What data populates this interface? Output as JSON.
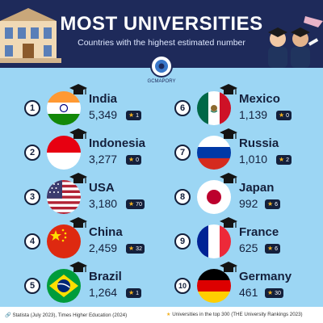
{
  "header": {
    "title": "MOST UNIVERSITIES",
    "subtitle": "Countries with the highest estimated number",
    "logo_text": "GCMAPORY"
  },
  "colors": {
    "header_bg": "#1e2a5a",
    "background": "#9cd6f4",
    "badge_bg": "#14203c",
    "star": "#f2b01e"
  },
  "countries": [
    {
      "rank": "1",
      "name": "India",
      "count": "5,349",
      "badge": "1",
      "flag_icon": "india-flag-icon"
    },
    {
      "rank": "2",
      "name": "Indonesia",
      "count": "3,277",
      "badge": "0",
      "flag_icon": "indonesia-flag-icon"
    },
    {
      "rank": "3",
      "name": "USA",
      "count": "3,180",
      "badge": "70",
      "flag_icon": "usa-flag-icon"
    },
    {
      "rank": "4",
      "name": "China",
      "count": "2,459",
      "badge": "32",
      "flag_icon": "china-flag-icon"
    },
    {
      "rank": "5",
      "name": "Brazil",
      "count": "1,264",
      "badge": "1",
      "flag_icon": "brazil-flag-icon"
    },
    {
      "rank": "6",
      "name": "Mexico",
      "count": "1,139",
      "badge": "0",
      "flag_icon": "mexico-flag-icon"
    },
    {
      "rank": "7",
      "name": "Russia",
      "count": "1,010",
      "badge": "2",
      "flag_icon": "russia-flag-icon"
    },
    {
      "rank": "8",
      "name": "Japan",
      "count": "992",
      "badge": "6",
      "flag_icon": "japan-flag-icon"
    },
    {
      "rank": "9",
      "name": "France",
      "count": "625",
      "badge": "6",
      "flag_icon": "france-flag-icon"
    },
    {
      "rank": "10",
      "name": "Germany",
      "count": "461",
      "badge": "30",
      "flag_icon": "germany-flag-icon"
    }
  ],
  "footer": {
    "source": "Statista (July 2023), Times Higher Education (2024)",
    "legend": "Universities in the top 300 (THE University Rankings 2023)"
  }
}
